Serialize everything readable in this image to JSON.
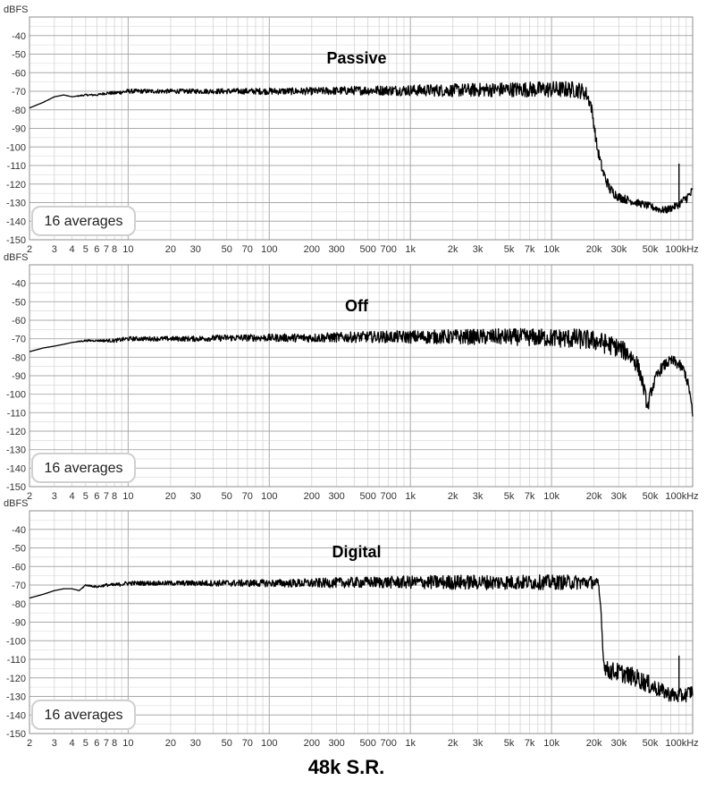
{
  "footer": {
    "title": "48k S.R."
  },
  "colors": {
    "trace": "#000000",
    "grid_major": "#a9a9a9",
    "grid_minor": "#d4d4d4",
    "badge_border": "#d0d0d0"
  },
  "chart_data": [
    {
      "type": "line",
      "title": "Passive",
      "ylabel": "dBFS",
      "xscale": "log",
      "xlim": [
        2,
        100000
      ],
      "ylim": [
        -150,
        -30
      ],
      "grid": true,
      "annotation": "16 averages",
      "x_ticks": [
        2,
        3,
        4,
        5,
        6,
        7,
        8,
        10,
        20,
        30,
        50,
        70,
        100,
        200,
        300,
        500,
        700,
        1000,
        2000,
        3000,
        5000,
        7000,
        10000,
        20000,
        30000,
        50000,
        100000
      ],
      "x_tick_labels": [
        "2",
        "3",
        "4",
        "5",
        "6",
        "7",
        "8",
        "10",
        "20",
        "30",
        "50",
        "70",
        "100",
        "200",
        "300",
        "500",
        "700",
        "1k",
        "2k",
        "3k",
        "5k",
        "7k",
        "10k",
        "20k",
        "30k",
        "50k",
        "100kHz"
      ],
      "y_ticks": [
        -40,
        -50,
        -60,
        -70,
        -80,
        -90,
        -100,
        -110,
        -120,
        -130,
        -140,
        -150
      ],
      "series": [
        {
          "x": [
            2,
            2.5,
            3,
            3.5,
            4,
            5,
            6,
            7,
            8,
            10,
            12,
            15,
            20,
            30,
            50,
            100,
            200,
            500,
            1000,
            2000,
            5000,
            10000,
            14000,
            16000,
            17500,
            19000,
            20000,
            21000,
            23000,
            26000,
            30000,
            40000,
            50000,
            60000,
            65000,
            70000,
            80000,
            95000,
            100000
          ],
          "y": [
            -79,
            -76,
            -73,
            -72,
            -73,
            -72,
            -72,
            -71,
            -71,
            -70,
            -70,
            -70,
            -70,
            -70,
            -70,
            -70,
            -70,
            -69.5,
            -69.5,
            -69.5,
            -69,
            -69,
            -69,
            -69.5,
            -71,
            -77,
            -88,
            -100,
            -113,
            -123,
            -127,
            -130,
            -132,
            -134,
            -134,
            -133,
            -131,
            -126,
            -124
          ],
          "spread": [
            0,
            0,
            0,
            0,
            0,
            0.5,
            0.5,
            0.8,
            1,
            1.2,
            1.2,
            1.2,
            1.2,
            1.3,
            1.5,
            1.8,
            2,
            2.5,
            3,
            3.5,
            4,
            4.5,
            4.5,
            4.5,
            4,
            3.5,
            3,
            3,
            3,
            3,
            2.5,
            2,
            2,
            2,
            2,
            2,
            2,
            3,
            3
          ]
        }
      ],
      "annotations_extra": [
        {
          "x": 80000,
          "y": -109,
          "label": ""
        }
      ]
    },
    {
      "type": "line",
      "title": "Off",
      "ylabel": "dBFS",
      "xscale": "log",
      "xlim": [
        2,
        100000
      ],
      "ylim": [
        -150,
        -30
      ],
      "grid": true,
      "annotation": "16 averages",
      "x_ticks": [
        2,
        3,
        4,
        5,
        6,
        7,
        8,
        10,
        20,
        30,
        50,
        70,
        100,
        200,
        300,
        500,
        700,
        1000,
        2000,
        3000,
        5000,
        7000,
        10000,
        20000,
        30000,
        50000,
        100000
      ],
      "x_tick_labels": [
        "2",
        "3",
        "4",
        "5",
        "6",
        "7",
        "8",
        "10",
        "20",
        "30",
        "50",
        "70",
        "100",
        "200",
        "300",
        "500",
        "700",
        "1k",
        "2k",
        "3k",
        "5k",
        "7k",
        "10k",
        "20k",
        "30k",
        "50k",
        "100kHz"
      ],
      "y_ticks": [
        -40,
        -50,
        -60,
        -70,
        -80,
        -90,
        -100,
        -110,
        -120,
        -130,
        -140,
        -150
      ],
      "series": [
        {
          "x": [
            2,
            2.5,
            3,
            3.5,
            4,
            5,
            6,
            7,
            8,
            10,
            12,
            15,
            20,
            30,
            50,
            100,
            200,
            500,
            1000,
            2000,
            5000,
            10000,
            15000,
            20000,
            25000,
            30000,
            35000,
            40000,
            43000,
            46000,
            48000,
            50000,
            55000,
            60000,
            66000,
            72000,
            80000,
            88000,
            95000,
            100000
          ],
          "y": [
            -77,
            -75,
            -74,
            -73,
            -72,
            -71,
            -71,
            -71,
            -71,
            -70,
            -70,
            -70,
            -70,
            -70,
            -69.5,
            -69.5,
            -69.5,
            -69,
            -69,
            -69,
            -69,
            -69.5,
            -70,
            -71,
            -73,
            -75,
            -78,
            -83,
            -90,
            -100,
            -108,
            -100,
            -91,
            -86,
            -83,
            -82,
            -84,
            -88,
            -98,
            -112
          ],
          "spread": [
            0,
            0,
            0,
            0,
            0,
            0.5,
            0.5,
            0.8,
            1,
            1.2,
            1.2,
            1.2,
            1.3,
            1.5,
            1.8,
            2,
            2.5,
            3,
            3.5,
            4,
            4.5,
            5,
            5.5,
            5.5,
            5.5,
            5,
            5,
            5,
            4,
            4,
            3,
            3,
            3,
            3,
            3,
            3,
            3,
            3,
            3,
            3
          ]
        }
      ]
    },
    {
      "type": "line",
      "title": "Digital",
      "ylabel": "dBFS",
      "xscale": "log",
      "xlim": [
        2,
        100000
      ],
      "ylim": [
        -150,
        -30
      ],
      "grid": true,
      "annotation": "16 averages",
      "x_ticks": [
        2,
        3,
        4,
        5,
        6,
        7,
        8,
        10,
        20,
        30,
        50,
        70,
        100,
        200,
        300,
        500,
        700,
        1000,
        2000,
        3000,
        5000,
        7000,
        10000,
        20000,
        30000,
        50000,
        100000
      ],
      "x_tick_labels": [
        "2",
        "3",
        "4",
        "5",
        "6",
        "7",
        "8",
        "10",
        "20",
        "30",
        "50",
        "70",
        "100",
        "200",
        "300",
        "500",
        "700",
        "1k",
        "2k",
        "3k",
        "5k",
        "7k",
        "10k",
        "20k",
        "30k",
        "50k",
        "100kHz"
      ],
      "y_ticks": [
        -40,
        -50,
        -60,
        -70,
        -80,
        -90,
        -100,
        -110,
        -120,
        -130,
        -140,
        -150
      ],
      "series": [
        {
          "x": [
            2,
            2.5,
            3,
            3.5,
            4,
            4.5,
            5,
            6,
            7,
            8,
            10,
            12,
            15,
            20,
            30,
            50,
            100,
            200,
            500,
            1000,
            2000,
            5000,
            10000,
            15000,
            20000,
            21500,
            22500,
            23200,
            24000,
            25000,
            30000,
            40000,
            50000,
            60000,
            70000,
            80000,
            90000,
            100000
          ],
          "y": [
            -77,
            -75,
            -73,
            -72,
            -72,
            -73,
            -70,
            -71,
            -70,
            -70,
            -69,
            -69,
            -69,
            -69,
            -69,
            -69,
            -69,
            -69,
            -68.5,
            -68.5,
            -68.5,
            -68.5,
            -68.5,
            -68.5,
            -68.5,
            -70,
            -85,
            -108,
            -115,
            -116,
            -117,
            -120,
            -124,
            -127,
            -129,
            -130,
            -129,
            -127
          ],
          "spread": [
            0,
            0,
            0,
            0,
            0,
            0,
            0.5,
            0.5,
            0.8,
            1,
            1.2,
            1.2,
            1.2,
            1.3,
            1.5,
            1.8,
            2,
            2.5,
            3,
            3.5,
            4,
            4,
            4,
            4,
            3.5,
            3,
            2,
            2,
            4,
            5,
            5,
            5,
            5,
            4,
            4,
            4,
            4,
            4
          ]
        }
      ],
      "annotations_extra": [
        {
          "x": 80000,
          "y": -108,
          "label": ""
        }
      ]
    }
  ]
}
